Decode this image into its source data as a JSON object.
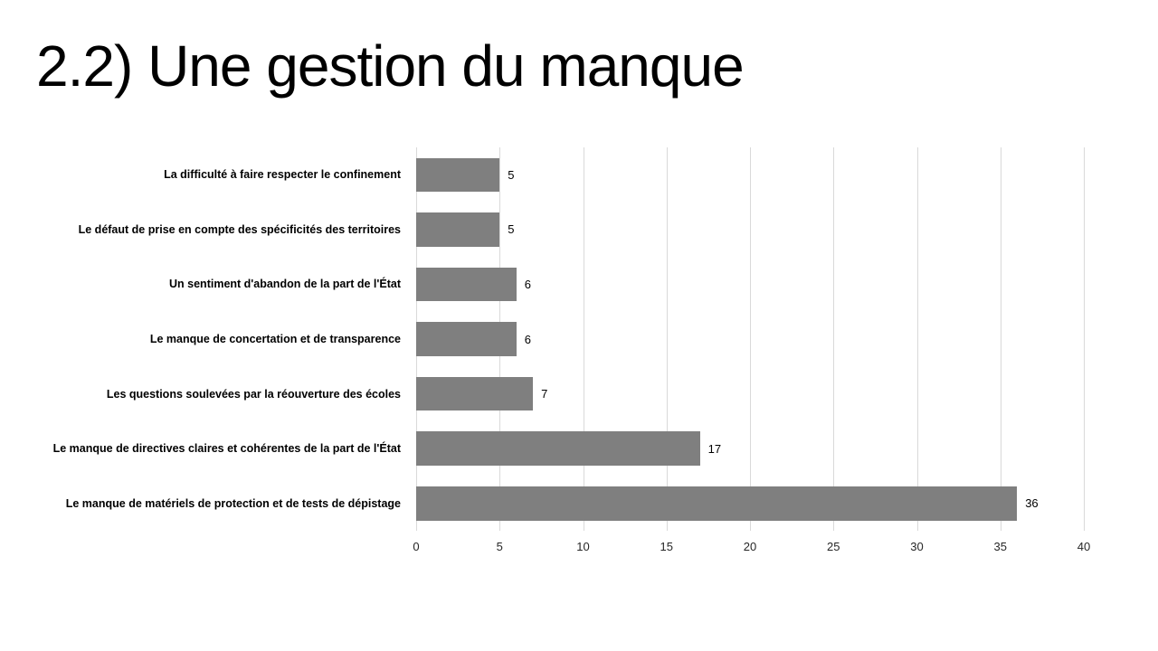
{
  "slide": {
    "title": "2.2) Une gestion du manque"
  },
  "chart_data": {
    "type": "bar",
    "orientation": "horizontal",
    "title": "",
    "xlabel": "",
    "ylabel": "",
    "categories": [
      "La difficulté à faire respecter le confinement",
      "Le défaut de prise en compte des spécificités des territoires",
      "Un sentiment d'abandon de la part de l'État",
      "Le manque de concertation et de transparence",
      "Les questions soulevées par la réouverture des écoles",
      "Le manque de directives claires et cohérentes de la part de l'État",
      "Le manque de matériels de protection et de tests de dépistage"
    ],
    "values": [
      5,
      5,
      6,
      6,
      7,
      17,
      36
    ],
    "xlim": [
      0,
      40
    ],
    "xticks": [
      0,
      5,
      10,
      15,
      20,
      25,
      30,
      35,
      40
    ],
    "grid": true,
    "legend": false,
    "value_labels": true,
    "bar_color": "#7f7f7f",
    "gridline_color": "#d9d9d9",
    "label_color": "#000000"
  }
}
